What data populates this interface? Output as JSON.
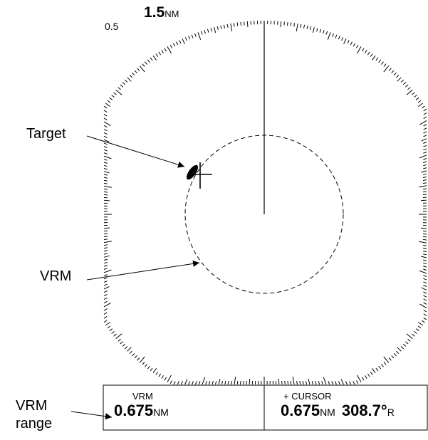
{
  "range_scale": {
    "ring_label": "0.5",
    "value": "1.5",
    "unit": "NM"
  },
  "callouts": {
    "target": "Target",
    "vrm": "VRM",
    "vrm_range_line1": "VRM",
    "vrm_range_line2": "range"
  },
  "readout": {
    "vrm_caption": "VRM",
    "vrm_value": "0.675",
    "vrm_unit": "NM",
    "cursor_caption": "+ CURSOR",
    "cursor_range": "0.675",
    "cursor_range_unit": "NM",
    "cursor_bearing": "308.7°",
    "cursor_bearing_ref": "R"
  }
}
